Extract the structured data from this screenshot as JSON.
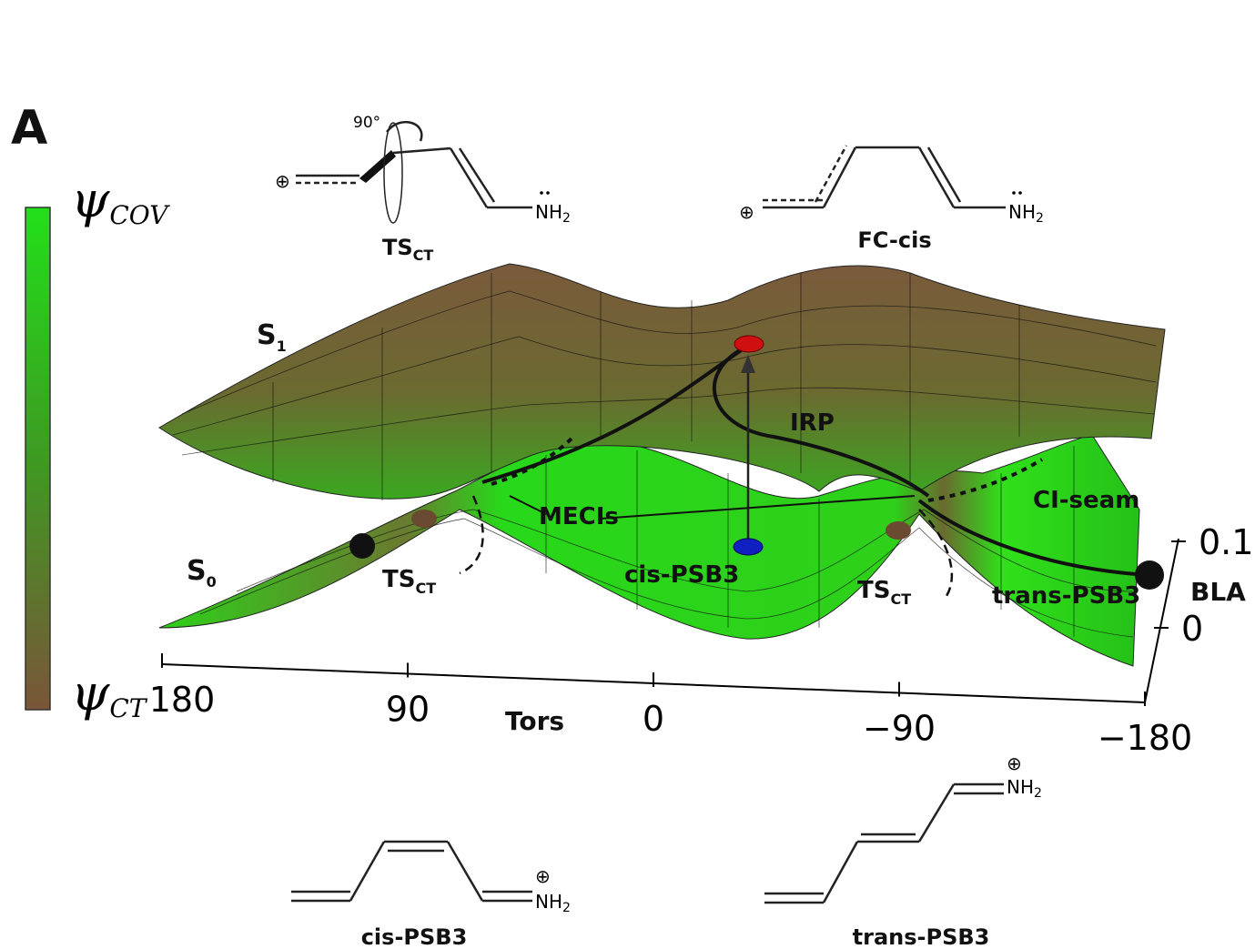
{
  "panel_label": "A",
  "colorbar": {
    "top": {
      "symbol": "ψ",
      "sub": "COV"
    },
    "bottom": {
      "symbol": "ψ",
      "sub": "CT"
    }
  },
  "molecules": [
    {
      "label": {
        "main": "TS",
        "sub": "CT"
      },
      "angle": "90°",
      "charge": "⊕",
      "group": {
        "main": "NH",
        "sub": "2"
      }
    },
    {
      "label": "FC-cis",
      "charge": "⊕",
      "group": {
        "main": "NH",
        "sub": "2"
      }
    },
    {
      "label": "cis-PSB3",
      "charge": "⊕",
      "group": {
        "main": "NH",
        "sub": "2"
      }
    },
    {
      "label": "trans-PSB3",
      "charge": "⊕",
      "group": {
        "main": "NH",
        "sub": "2"
      }
    }
  ],
  "surfaces": {
    "s1": {
      "main": "S",
      "sub": "1"
    },
    "s0": {
      "main": "S",
      "sub": "0"
    }
  },
  "annotations": {
    "irp": "IRP",
    "meci": "MECIs",
    "ci_seam": "CI-seam",
    "cis": "cis-PSB3",
    "trans": "trans-PSB3",
    "ts_left": {
      "main": "TS",
      "sub": "CT"
    },
    "ts_right": {
      "main": "TS",
      "sub": "CT"
    }
  },
  "axes": {
    "tors": {
      "title": "Tors",
      "ticks": [
        "180",
        "90",
        "0",
        "−90",
        "−180"
      ]
    },
    "bla": {
      "title": "BLA",
      "ticks": [
        "0.1",
        "0"
      ]
    }
  }
}
